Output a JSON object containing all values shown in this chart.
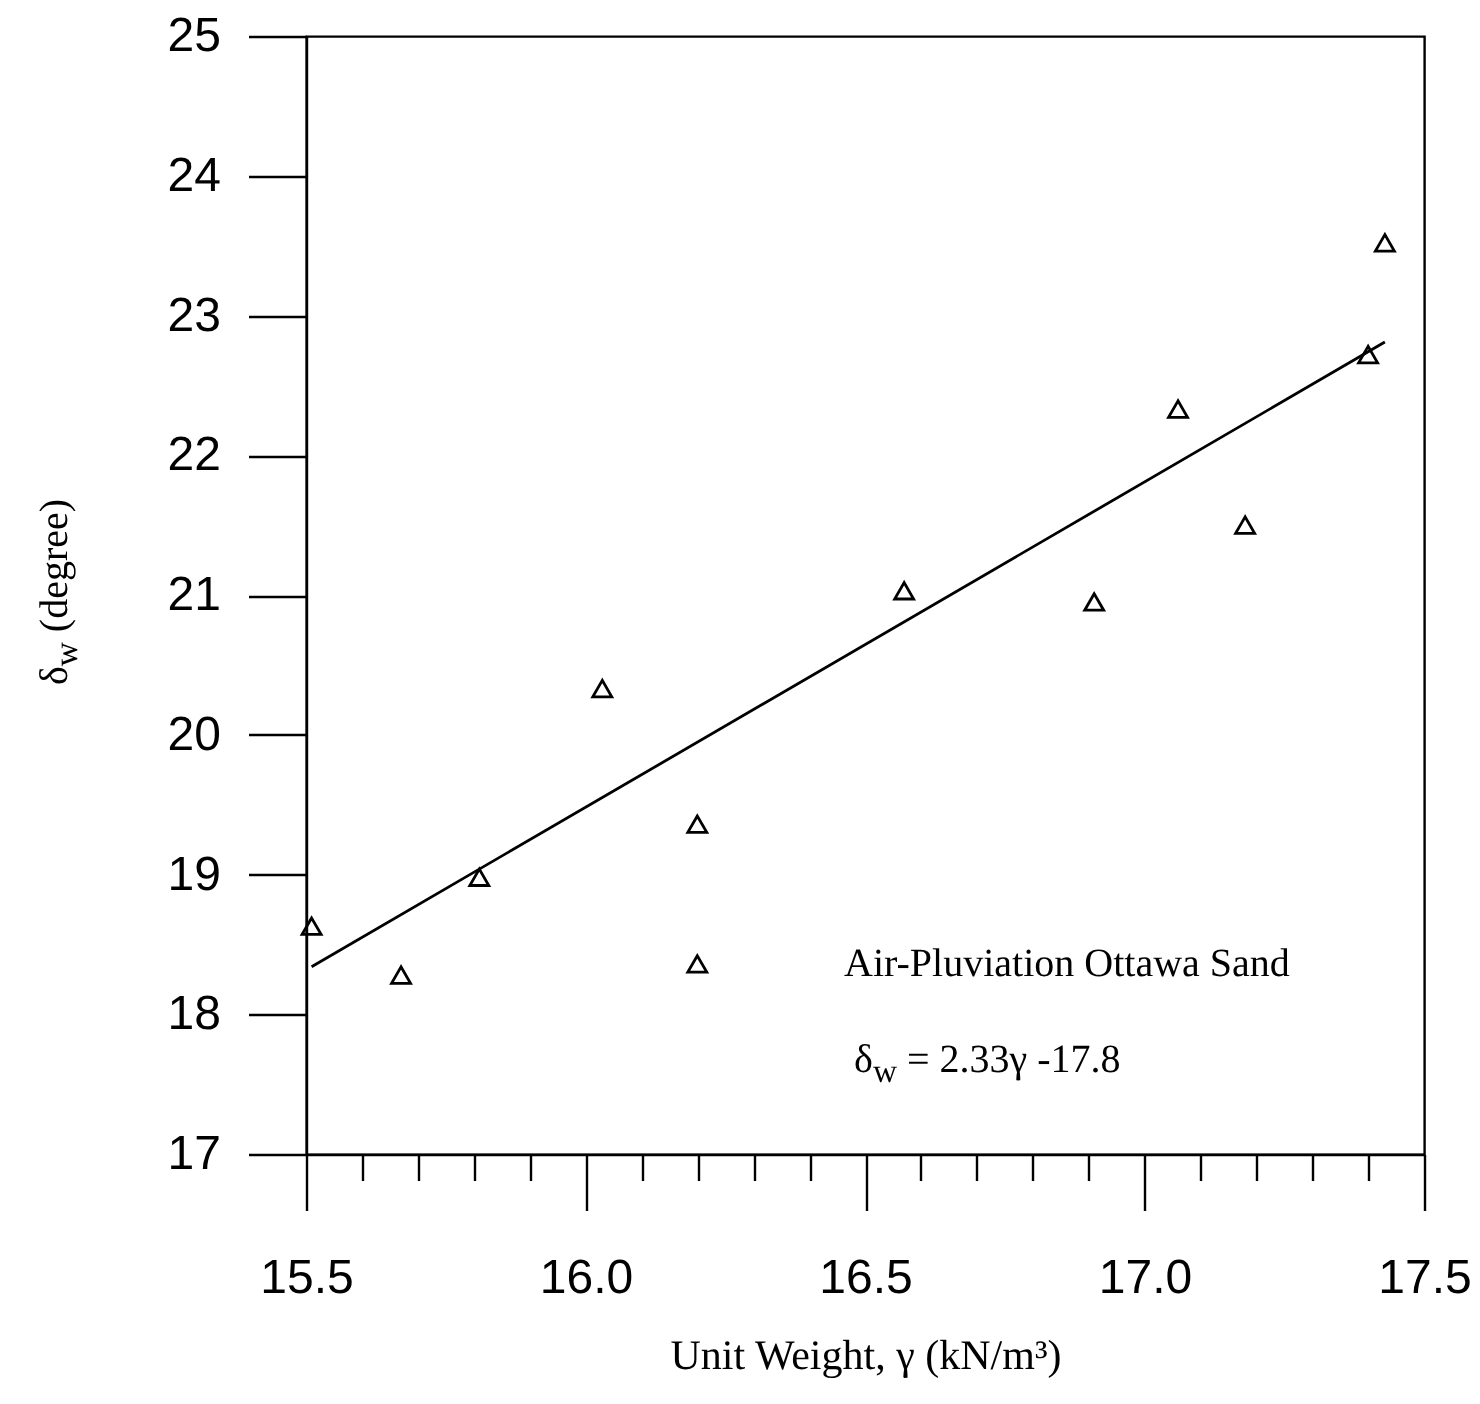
{
  "chart_data": {
    "type": "scatter",
    "xlabel": "Unit Weight, γ (kN/m³)",
    "ylabel": "δ$_{w}$  (degree)",
    "annotations": [
      "Air-Pluviation Ottawa Sand",
      "δ$_{w}$ = 2.33γ -17.8"
    ],
    "xlim": [
      15.5,
      17.5
    ],
    "ylim": [
      17,
      25
    ],
    "xticks": [
      15.5,
      {
        "value": 15.6,
        "label": null
      },
      {
        "value": 15.7,
        "label": null
      },
      {
        "value": 15.8,
        "label": null
      },
      {
        "value": 15.9,
        "label": null
      },
      {
        "value": 16,
        "label": "16.0"
      },
      {
        "value": 16.1,
        "label": null
      },
      {
        "value": 16.2,
        "label": null
      },
      {
        "value": 16.3,
        "label": null
      },
      {
        "value": 16.4,
        "label": null
      },
      16.5,
      {
        "value": 16.6,
        "label": null
      },
      {
        "value": 16.7,
        "label": null
      },
      {
        "value": 16.8,
        "label": null
      },
      {
        "value": 16.9,
        "label": null
      },
      {
        "value": 17,
        "label": "17.0"
      },
      {
        "value": 17.1,
        "label": null
      },
      {
        "value": 17.2,
        "label": null
      },
      {
        "value": 17.3,
        "label": null
      },
      {
        "value": 17.4,
        "label": null
      },
      17.5
    ],
    "yticks": [
      17,
      18,
      19,
      20,
      21,
      22,
      23,
      24,
      25
    ],
    "marker": "triangle",
    "series": [
      {
        "color": "#000000",
        "x": [
          15.51,
          15.67,
          15.81,
          16.03,
          16.2,
          16.2,
          16.57,
          16.91,
          17.06,
          17.18,
          17.4,
          17.43
        ],
        "values": [
          18.63,
          18.28,
          18.98,
          20.33,
          19.36,
          18.36,
          21.03,
          20.95,
          22.33,
          21.5,
          22.72,
          23.52
        ]
      },
      {
        "type": "line",
        "marker": "none",
        "color": "#000000",
        "x": [
          15.51,
          17.43
        ],
        "values": [
          18.34,
          22.81
        ]
      }
    ]
  }
}
